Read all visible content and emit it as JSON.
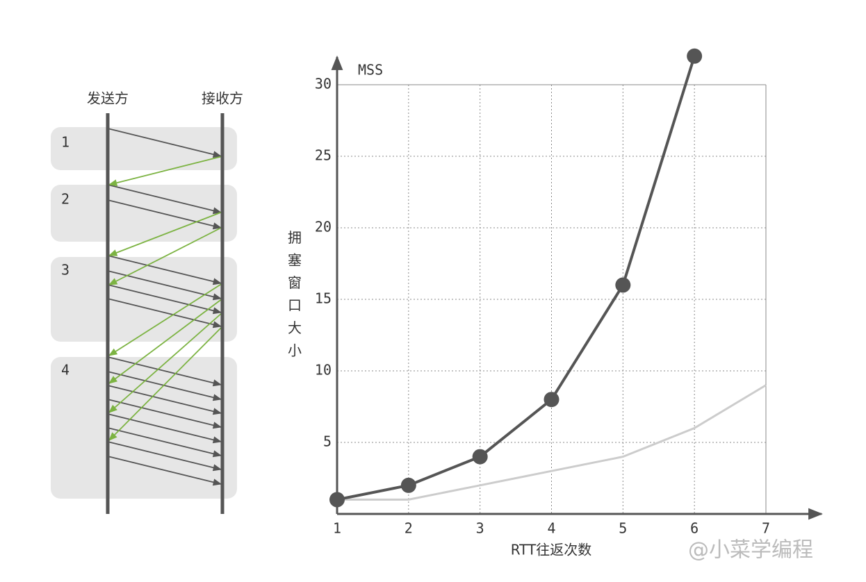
{
  "diagram": {
    "sender": "发送方",
    "receiver": "接收方",
    "rounds": [
      "1",
      "2",
      "3",
      "4"
    ]
  },
  "chart_data": {
    "type": "line",
    "y_label": "拥塞窗口大小",
    "y_unit": "MSS",
    "x_label": "RTT往返次数",
    "x": [
      1,
      2,
      3,
      4,
      5,
      6,
      7
    ],
    "series": [
      {
        "color": "#555555",
        "values": [
          1,
          2,
          4,
          8,
          16,
          32,
          null
        ],
        "markers": true
      },
      {
        "color": "#cccccc",
        "values": [
          1,
          1,
          2,
          3,
          4,
          6,
          9
        ],
        "markers": false
      }
    ],
    "xlim": [
      1,
      7
    ],
    "xticks": [
      1,
      2,
      3,
      4,
      5,
      6,
      7
    ],
    "ylim": [
      0,
      30
    ],
    "yticks": [
      5,
      10,
      15,
      20,
      25,
      30
    ],
    "grid": true
  },
  "watermark": "@小菜学编程"
}
